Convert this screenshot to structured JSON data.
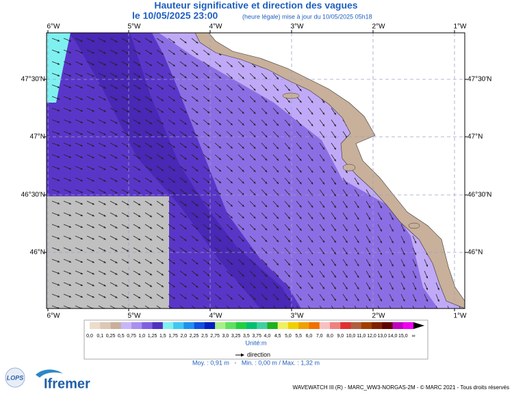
{
  "header": {
    "title": "Hauteur significative et direction des vagues",
    "date": "le 10/05/2025 23:00",
    "note": "(heure légale) mise à jour du 10/05/2025 05h18"
  },
  "map": {
    "lon_labels": [
      "6°W",
      "5°W",
      "4°W",
      "3°W",
      "2°W",
      "1°W"
    ],
    "lat_labels": [
      "47°30'N",
      "47°N",
      "46°30'N",
      "46°N"
    ]
  },
  "legend": {
    "labels": [
      "0,0",
      "0,1",
      "0,25",
      "0,5",
      "0,75",
      "1,0",
      "1,25",
      "1,5",
      "1,75",
      "2,0",
      "2,25",
      "2,5",
      "2,75",
      "3,0",
      "3,25",
      "3,5",
      "3,75",
      "4,0",
      "4,5",
      "5,0",
      "5,5",
      "6,0",
      "7,0",
      "8,0",
      "9,0",
      "10,0",
      "11,0",
      "12,0",
      "13,0",
      "14,0",
      "15,0",
      "∞"
    ],
    "colors": [
      "#ecdccc",
      "#dcc8b4",
      "#c8b09a",
      "#c8b6f8",
      "#a890f0",
      "#8060e0",
      "#5030c0",
      "#80f0f0",
      "#40c8f0",
      "#2090f0",
      "#1050e0",
      "#0020c0",
      "#a8f088",
      "#60e060",
      "#20d040",
      "#00c070",
      "#40d0a0",
      "#20b020",
      "#f0f060",
      "#f0d000",
      "#f0a000",
      "#f07000",
      "#f8c0c0",
      "#f08080",
      "#e03030",
      "#b06040",
      "#a04000",
      "#802000",
      "#600000",
      "#c000c0",
      "#f000f0"
    ],
    "end_color": "#000000",
    "unit": "Unité:m",
    "direction": "direction"
  },
  "stats": "Moy. : 0,91 m   -   Min. : 0,00 m / Max. : 1,32 m",
  "footer": {
    "credit": "WAVEWATCH III (R) - MARC_WW3-NORGAS-2M - © MARC 2021 - Tous droits réservés",
    "logo_left": "LOPS",
    "logo_right": "Ifremer"
  }
}
